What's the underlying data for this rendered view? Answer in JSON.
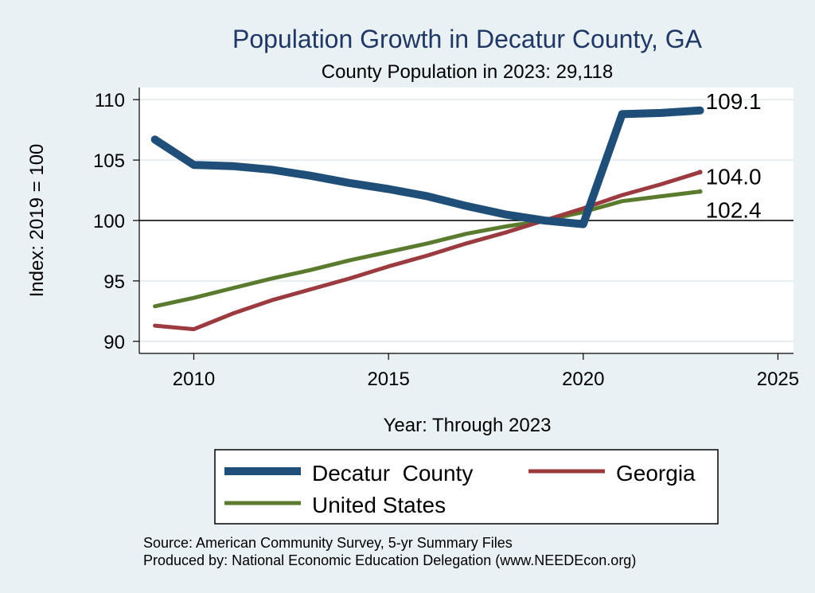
{
  "chart_data": {
    "type": "line",
    "title": "Population Growth in Decatur County, GA",
    "subtitle": "County Population in 2023: 29,118",
    "xlabel": "Year: Through 2023",
    "ylabel": "Index: 2019 = 100",
    "xlim": [
      2008.6,
      2025.4
    ],
    "ylim": [
      89,
      111
    ],
    "xticks": [
      2010,
      2015,
      2020,
      2025
    ],
    "yticks": [
      90,
      95,
      100,
      105,
      110
    ],
    "reference_line": 100,
    "grid": true,
    "series": [
      {
        "name": "Decatur  County",
        "color": "#1f4e79",
        "end_label": "109.1",
        "x": [
          2009,
          2010,
          2011,
          2012,
          2013,
          2014,
          2015,
          2016,
          2017,
          2018,
          2019,
          2020,
          2021,
          2022,
          2023
        ],
        "values": [
          106.7,
          104.6,
          104.5,
          104.2,
          103.7,
          103.1,
          102.6,
          102.0,
          101.2,
          100.5,
          100.0,
          99.7,
          108.8,
          108.9,
          109.1
        ]
      },
      {
        "name": "Georgia",
        "color": "#9b3a3f",
        "end_label": "104.0",
        "x": [
          2009,
          2010,
          2011,
          2012,
          2013,
          2014,
          2015,
          2016,
          2017,
          2018,
          2019,
          2020,
          2021,
          2022,
          2023
        ],
        "values": [
          91.3,
          91.0,
          92.3,
          93.4,
          94.3,
          95.2,
          96.2,
          97.1,
          98.1,
          99.0,
          100.0,
          101.0,
          102.1,
          103.0,
          104.0
        ]
      },
      {
        "name": "United States",
        "color": "#5a7a2e",
        "end_label": "102.4",
        "x": [
          2009,
          2010,
          2011,
          2012,
          2013,
          2014,
          2015,
          2016,
          2017,
          2018,
          2019,
          2020,
          2021,
          2022,
          2023
        ],
        "values": [
          92.9,
          93.6,
          94.4,
          95.2,
          95.9,
          96.7,
          97.4,
          98.1,
          98.9,
          99.5,
          100.0,
          100.7,
          101.6,
          102.0,
          102.4
        ]
      }
    ]
  },
  "source_lines": [
    "Source: American Community Survey, 5-yr Summary Files",
    "Produced by: National Economic Education Delegation (www.NEEDEcon.org)"
  ]
}
